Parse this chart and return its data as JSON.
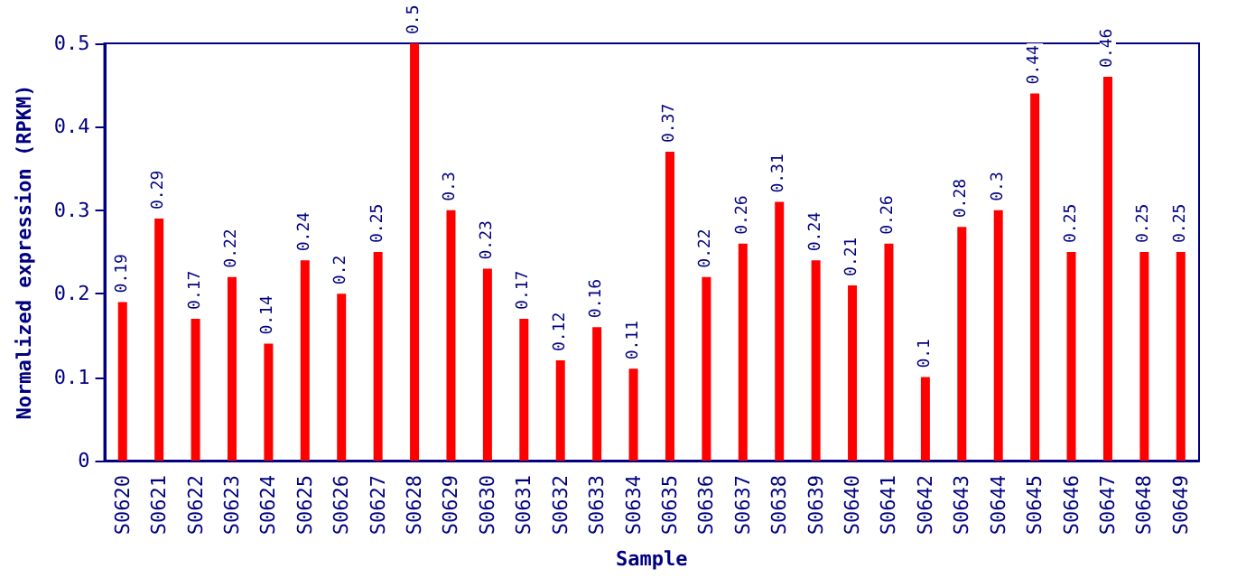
{
  "chart_data": {
    "type": "bar",
    "xlabel": "Sample",
    "ylabel": "Normalized expression (RPKM)",
    "categories": [
      "S0620",
      "S0621",
      "S0622",
      "S0623",
      "S0624",
      "S0625",
      "S0626",
      "S0627",
      "S0628",
      "S0629",
      "S0630",
      "S0631",
      "S0632",
      "S0633",
      "S0634",
      "S0635",
      "S0636",
      "S0637",
      "S0638",
      "S0639",
      "S0640",
      "S0641",
      "S0642",
      "S0643",
      "S0644",
      "S0645",
      "S0646",
      "S0647",
      "S0648",
      "S0649"
    ],
    "values": [
      0.19,
      0.29,
      0.17,
      0.22,
      0.14,
      0.24,
      0.2,
      0.25,
      0.5,
      0.3,
      0.23,
      0.17,
      0.12,
      0.16,
      0.11,
      0.37,
      0.22,
      0.26,
      0.31,
      0.24,
      0.21,
      0.26,
      0.1,
      0.28,
      0.3,
      0.44,
      0.25,
      0.46,
      0.25,
      0.25
    ],
    "color": "#ff0000",
    "ylim": [
      0,
      0.5
    ],
    "yticks": [
      0,
      0.1,
      0.2,
      0.3,
      0.4,
      0.5
    ],
    "data_labels": true,
    "grid": false
  }
}
